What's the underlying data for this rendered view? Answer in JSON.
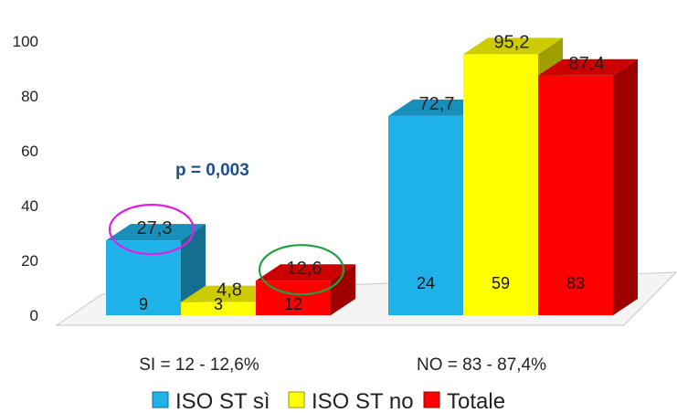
{
  "chart_data": {
    "type": "bar",
    "categories": [
      "SI = 12 - 12,6%",
      "NO = 83 - 87,4%"
    ],
    "series": [
      {
        "name": "ISO ST sì",
        "color": "#1eb2e8",
        "values": [
          27.3,
          72.7
        ],
        "value_labels": [
          "27,3",
          "72,7"
        ],
        "counts": [
          "9",
          "24"
        ]
      },
      {
        "name": "ISO ST no",
        "color": "#ffff00",
        "values": [
          4.8,
          95.2
        ],
        "value_labels": [
          "4,8",
          "95,2"
        ],
        "counts": [
          "3",
          "59"
        ]
      },
      {
        "name": "Totale",
        "color": "#ff0000",
        "values": [
          12.6,
          87.4
        ],
        "value_labels": [
          "12,6",
          "87,4"
        ],
        "counts": [
          "12",
          "83"
        ]
      }
    ],
    "yticks": [
      "0",
      "20",
      "40",
      "60",
      "80",
      "100"
    ],
    "ylim": [
      0,
      100
    ],
    "annotation": "p = 0,003",
    "highlight_circles": [
      {
        "series": 0,
        "category": 0,
        "color": "#e020e0"
      },
      {
        "series": 2,
        "category": 0,
        "color": "#20a040"
      }
    ],
    "legend_position": "bottom"
  }
}
